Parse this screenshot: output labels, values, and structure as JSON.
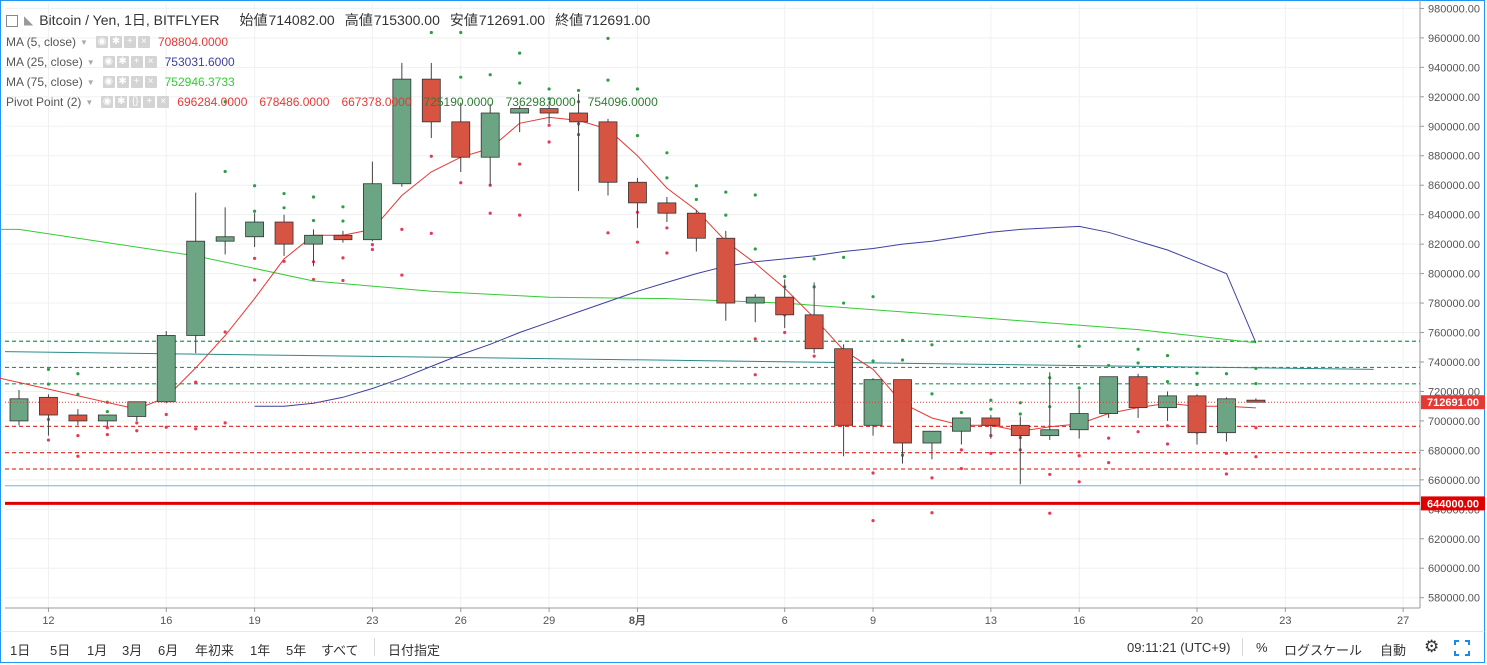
{
  "title": {
    "symbol": "Bitcoin / Yen, 1日, BITFLYER",
    "open_label": "始値",
    "open": "714082.00",
    "high_label": "高値",
    "high": "715300.00",
    "low_label": "安値",
    "low": "712691.00",
    "close_label": "終値",
    "close": "712691.00"
  },
  "indicators": [
    {
      "name": "MA (5, close)",
      "values": [
        "708804.0000"
      ],
      "color": "#e53935"
    },
    {
      "name": "MA (25, close)",
      "values": [
        "753031.6000"
      ],
      "color": "#3f3f9f"
    },
    {
      "name": "MA (75, close)",
      "values": [
        "752946.3733"
      ],
      "color": "#33cc33"
    },
    {
      "name": "Pivot Point (2)",
      "values": [
        "696284.0000",
        "678486.0000",
        "667378.0000",
        "725190.0000",
        "736298.0000",
        "754096.0000"
      ],
      "colors": [
        "#e53935",
        "#e53935",
        "#e53935",
        "#2e7d32",
        "#2e7d32",
        "#2e7d32"
      ]
    }
  ],
  "chart_data": {
    "type": "candlestick",
    "y_ticks": [
      "580000.00",
      "600000.00",
      "620000.00",
      "640000.00",
      "660000.00",
      "680000.00",
      "700000.00",
      "720000.00",
      "740000.00",
      "760000.00",
      "780000.00",
      "800000.00",
      "820000.00",
      "840000.00",
      "860000.00",
      "880000.00",
      "900000.00",
      "920000.00",
      "940000.00",
      "960000.00",
      "980000.00"
    ],
    "ylim": [
      573000,
      983000
    ],
    "x_labels": [
      {
        "label": "12",
        "i": 1
      },
      {
        "label": "16",
        "i": 5
      },
      {
        "label": "19",
        "i": 8
      },
      {
        "label": "23",
        "i": 12
      },
      {
        "label": "26",
        "i": 15
      },
      {
        "label": "29",
        "i": 18
      },
      {
        "label": "8月",
        "i": 21
      },
      {
        "label": "6",
        "i": 26
      },
      {
        "label": "9",
        "i": 29
      },
      {
        "label": "13",
        "i": 33
      },
      {
        "label": "16",
        "i": 36
      },
      {
        "label": "20",
        "i": 40
      },
      {
        "label": "23",
        "i": 43
      },
      {
        "label": "27",
        "i": 47
      }
    ],
    "candles": [
      {
        "o": 700000,
        "h": 721000,
        "l": 697000,
        "c": 715000
      },
      {
        "o": 716000,
        "h": 718000,
        "l": 690000,
        "c": 704000
      },
      {
        "o": 704000,
        "h": 708000,
        "l": 697000,
        "c": 700000
      },
      {
        "o": 700000,
        "h": 704000,
        "l": 696000,
        "c": 704000
      },
      {
        "o": 703000,
        "h": 713000,
        "l": 700000,
        "c": 713000
      },
      {
        "o": 713000,
        "h": 761000,
        "l": 712000,
        "c": 758000
      },
      {
        "o": 758000,
        "h": 855000,
        "l": 746000,
        "c": 822000
      },
      {
        "o": 822000,
        "h": 845000,
        "l": 813000,
        "c": 825000
      },
      {
        "o": 825000,
        "h": 841000,
        "l": 818000,
        "c": 835000
      },
      {
        "o": 835000,
        "h": 840000,
        "l": 812000,
        "c": 820000
      },
      {
        "o": 820000,
        "h": 830000,
        "l": 805000,
        "c": 826000
      },
      {
        "o": 826000,
        "h": 829000,
        "l": 821000,
        "c": 823000
      },
      {
        "o": 823000,
        "h": 876000,
        "l": 822000,
        "c": 861000
      },
      {
        "o": 861000,
        "h": 943000,
        "l": 859000,
        "c": 932000
      },
      {
        "o": 932000,
        "h": 943000,
        "l": 892000,
        "c": 903000
      },
      {
        "o": 903000,
        "h": 916000,
        "l": 869000,
        "c": 879000
      },
      {
        "o": 879000,
        "h": 915000,
        "l": 860000,
        "c": 909000
      },
      {
        "o": 909000,
        "h": 914000,
        "l": 896000,
        "c": 912000
      },
      {
        "o": 912000,
        "h": 917000,
        "l": 902000,
        "c": 909000
      },
      {
        "o": 909000,
        "h": 922000,
        "l": 856000,
        "c": 903000
      },
      {
        "o": 903000,
        "h": 905000,
        "l": 853000,
        "c": 862000
      },
      {
        "o": 862000,
        "h": 865000,
        "l": 831000,
        "c": 848000
      },
      {
        "o": 848000,
        "h": 852000,
        "l": 835000,
        "c": 841000
      },
      {
        "o": 841000,
        "h": 843000,
        "l": 815000,
        "c": 824000
      },
      {
        "o": 824000,
        "h": 829000,
        "l": 768000,
        "c": 780000
      },
      {
        "o": 780000,
        "h": 786000,
        "l": 767000,
        "c": 784000
      },
      {
        "o": 784000,
        "h": 796000,
        "l": 763000,
        "c": 772000
      },
      {
        "o": 772000,
        "h": 794000,
        "l": 746000,
        "c": 749000
      },
      {
        "o": 749000,
        "h": 752000,
        "l": 676000,
        "c": 697000
      },
      {
        "o": 697000,
        "h": 729000,
        "l": 690000,
        "c": 728000
      },
      {
        "o": 728000,
        "h": 728000,
        "l": 671000,
        "c": 685000
      },
      {
        "o": 685000,
        "h": 693000,
        "l": 674000,
        "c": 693000
      },
      {
        "o": 693000,
        "h": 702000,
        "l": 684000,
        "c": 702000
      },
      {
        "o": 702000,
        "h": 704000,
        "l": 688000,
        "c": 697000
      },
      {
        "o": 697000,
        "h": 703000,
        "l": 657000,
        "c": 690000
      },
      {
        "o": 690000,
        "h": 733000,
        "l": 687000,
        "c": 694000
      },
      {
        "o": 694000,
        "h": 721000,
        "l": 688000,
        "c": 705000
      },
      {
        "o": 705000,
        "h": 730000,
        "l": 702000,
        "c": 730000
      },
      {
        "o": 730000,
        "h": 732000,
        "l": 702000,
        "c": 709000
      },
      {
        "o": 709000,
        "h": 720000,
        "l": 700000,
        "c": 717000
      },
      {
        "o": 717000,
        "h": 718000,
        "l": 684000,
        "c": 692000
      },
      {
        "o": 692000,
        "h": 716000,
        "l": 686000,
        "c": 715000
      },
      {
        "o": 714082,
        "h": 715300,
        "l": 712691,
        "c": 712691
      }
    ],
    "ma5": [
      null,
      null,
      null,
      null,
      708000,
      716000,
      736000,
      758000,
      783000,
      810000,
      826000,
      826000,
      830000,
      853000,
      869000,
      879000,
      885000,
      902000,
      906000,
      904000,
      898000,
      880000,
      858000,
      843000,
      822000,
      807000,
      790000,
      770000,
      748000,
      735000,
      712000,
      702000,
      697000,
      697000,
      693000,
      696000,
      698000,
      705000,
      709000,
      712000,
      710000,
      710000,
      708804
    ],
    "ma25": [
      null,
      null,
      null,
      null,
      null,
      null,
      null,
      null,
      710000,
      710000,
      712000,
      716000,
      722000,
      729000,
      737000,
      745000,
      752000,
      760000,
      767000,
      774000,
      781000,
      788000,
      794000,
      800000,
      805000,
      808000,
      810000,
      812000,
      815000,
      817000,
      820000,
      822000,
      825000,
      828000,
      830000,
      831000,
      832000,
      828000,
      822000,
      816000,
      808000,
      800000,
      753032
    ],
    "ma75": {
      "start": [
        0,
        830000
      ],
      "end": [
        42,
        753000
      ],
      "points": [
        [
          0,
          830000
        ],
        [
          6,
          812000
        ],
        [
          10,
          795000
        ],
        [
          14,
          788000
        ],
        [
          18,
          784000
        ],
        [
          22,
          783000
        ],
        [
          26,
          780000
        ],
        [
          30,
          774000
        ],
        [
          34,
          768000
        ],
        [
          38,
          762000
        ],
        [
          42,
          753000
        ]
      ]
    },
    "pivot_levels": [
      {
        "value": 754096,
        "color": "#1a9c52",
        "style": "dashed"
      },
      {
        "value": 736298,
        "color": "#1a9c52",
        "style": "dashed"
      },
      {
        "value": 725190,
        "color": "#1a9c52",
        "style": "dashed"
      },
      {
        "value": 696284,
        "color": "#e53935",
        "style": "dashed"
      },
      {
        "value": 678486,
        "color": "#e53935",
        "style": "dashed"
      },
      {
        "value": 667378,
        "color": "#e53935",
        "style": "dashed"
      }
    ],
    "trendlines": [
      {
        "from": [
          0,
          747000
        ],
        "to": [
          46,
          735000
        ],
        "color": "#2a8a8a"
      },
      {
        "from": [
          0,
          656000
        ],
        "to": [
          48,
          656000
        ],
        "color": "#64b5f6"
      },
      {
        "from": [
          0,
          644000
        ],
        "to": [
          48,
          644000
        ],
        "color": "#e00000",
        "width": 3
      }
    ],
    "price_labels": [
      {
        "text": "712691.00",
        "value": 712691,
        "bg": "#e53935"
      },
      {
        "text": "644000.00",
        "value": 644000,
        "bg": "#e00000"
      }
    ],
    "price_line": {
      "value": 712691,
      "color": "#e53935"
    }
  },
  "toolbar": {
    "ranges": [
      "1日",
      "5日",
      "1月",
      "3月",
      "6月",
      "年初来",
      "1年",
      "5年",
      "すべて"
    ],
    "date_select": "日付指定",
    "clock": "09:11:21 (UTC+9)",
    "percent": "%",
    "log_scale": "ログスケール",
    "auto": "自動",
    "settings_icon": "gear-icon",
    "fullscreen_icon": "fullscreen-icon"
  }
}
